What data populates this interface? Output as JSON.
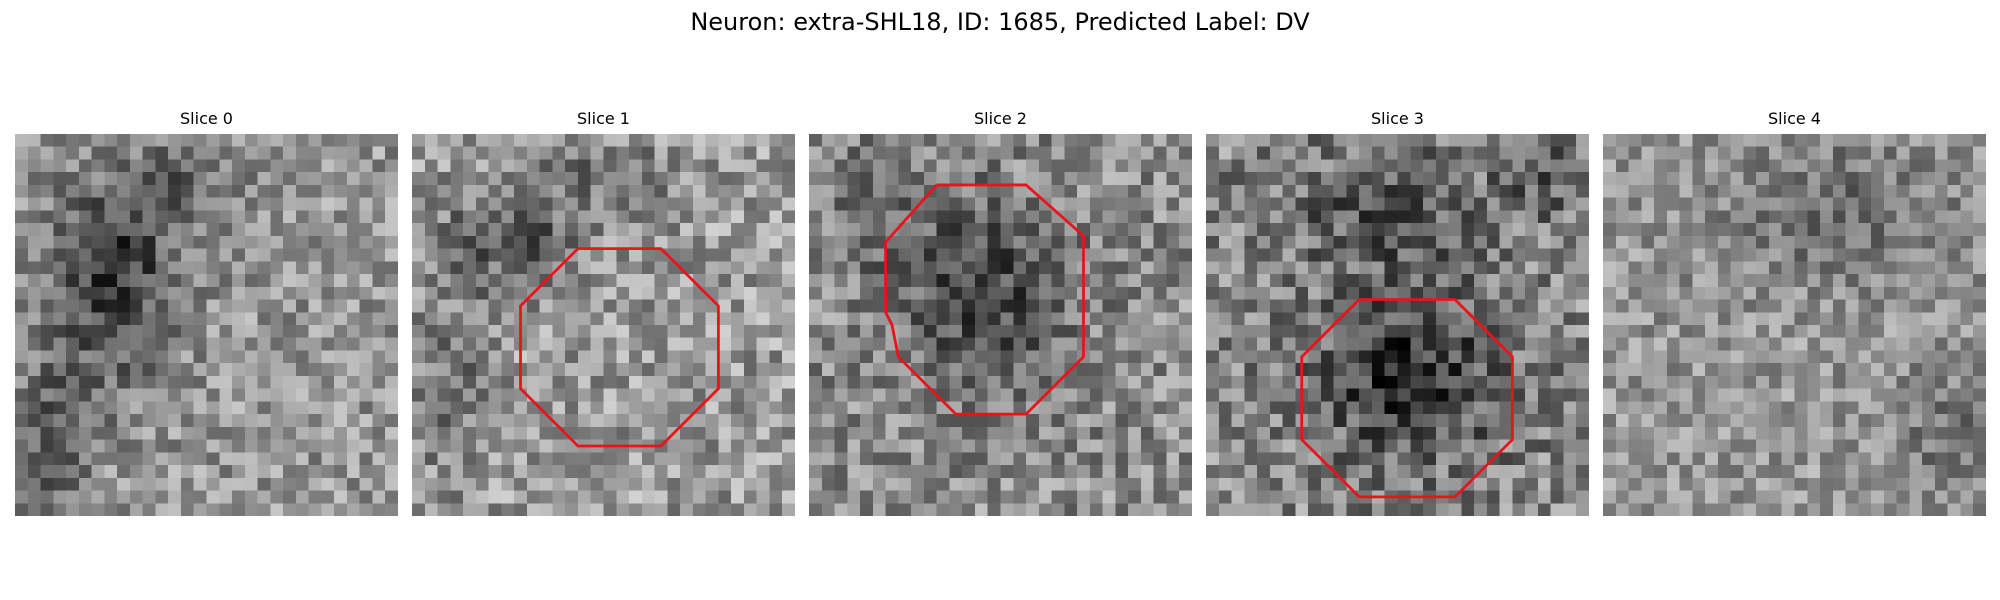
{
  "figure": {
    "title": "Neuron: extra-SHL18, ID: 1685, Predicted Label: DV"
  },
  "grid": {
    "size": 30
  },
  "panels": [
    {
      "title": "Slice 0",
      "contour": null,
      "dark_blobs": [
        {
          "cx": 8,
          "cy": 11,
          "rx": 5,
          "ry": 9,
          "depth": 95
        },
        {
          "cx": 3,
          "cy": 24,
          "rx": 3,
          "ry": 9,
          "depth": 55
        },
        {
          "cx": 14,
          "cy": 3,
          "rx": 4,
          "ry": 5,
          "depth": 40
        }
      ],
      "base": 150,
      "noise": 50
    },
    {
      "title": "Slice 1",
      "contour": [
        [
          13,
          9
        ],
        [
          19.5,
          9
        ],
        [
          24,
          13.5
        ],
        [
          24,
          20
        ],
        [
          19.5,
          24.5
        ],
        [
          13,
          24.5
        ],
        [
          8.5,
          20
        ],
        [
          8.5,
          13.5
        ],
        [
          13,
          9
        ]
      ],
      "dark_blobs": [
        {
          "cx": 8,
          "cy": 8,
          "rx": 6,
          "ry": 5,
          "depth": 70
        },
        {
          "cx": 3,
          "cy": 20,
          "rx": 3,
          "ry": 7,
          "depth": 45
        },
        {
          "cx": 16,
          "cy": 3,
          "rx": 5,
          "ry": 3,
          "depth": 35
        }
      ],
      "base": 155,
      "noise": 55
    },
    {
      "title": "Slice 2",
      "contour": [
        [
          10,
          4
        ],
        [
          17,
          4
        ],
        [
          21.5,
          8
        ],
        [
          21.5,
          17.5
        ],
        [
          17,
          22
        ],
        [
          11.5,
          22
        ],
        [
          7,
          17.5
        ],
        [
          6.5,
          15
        ],
        [
          6,
          14
        ],
        [
          6,
          8.5
        ],
        [
          10,
          4
        ]
      ],
      "dark_blobs": [
        {
          "cx": 13.5,
          "cy": 12.5,
          "rx": 7,
          "ry": 8,
          "depth": 75
        },
        {
          "cx": 5,
          "cy": 5,
          "rx": 3,
          "ry": 5,
          "depth": 45
        }
      ],
      "base": 140,
      "noise": 55
    },
    {
      "title": "Slice 3",
      "contour": [
        [
          12,
          13
        ],
        [
          19.5,
          13
        ],
        [
          24,
          17.5
        ],
        [
          24,
          24
        ],
        [
          19.5,
          28.5
        ],
        [
          12,
          28.5
        ],
        [
          7.5,
          24
        ],
        [
          7.5,
          17.5
        ],
        [
          12,
          13
        ]
      ],
      "dark_blobs": [
        {
          "cx": 16,
          "cy": 19,
          "rx": 8,
          "ry": 7,
          "depth": 90
        },
        {
          "cx": 14,
          "cy": 6,
          "rx": 8,
          "ry": 5,
          "depth": 55
        },
        {
          "cx": 27,
          "cy": 3,
          "rx": 4,
          "ry": 4,
          "depth": 45
        }
      ],
      "base": 135,
      "noise": 60
    },
    {
      "title": "Slice 4",
      "contour": null,
      "dark_blobs": [
        {
          "cx": 18,
          "cy": 6,
          "rx": 10,
          "ry": 6,
          "depth": 45
        },
        {
          "cx": 27,
          "cy": 24,
          "rx": 4,
          "ry": 6,
          "depth": 35
        }
      ],
      "base": 150,
      "noise": 45
    }
  ],
  "colors": {
    "contour": "#e8141c"
  }
}
